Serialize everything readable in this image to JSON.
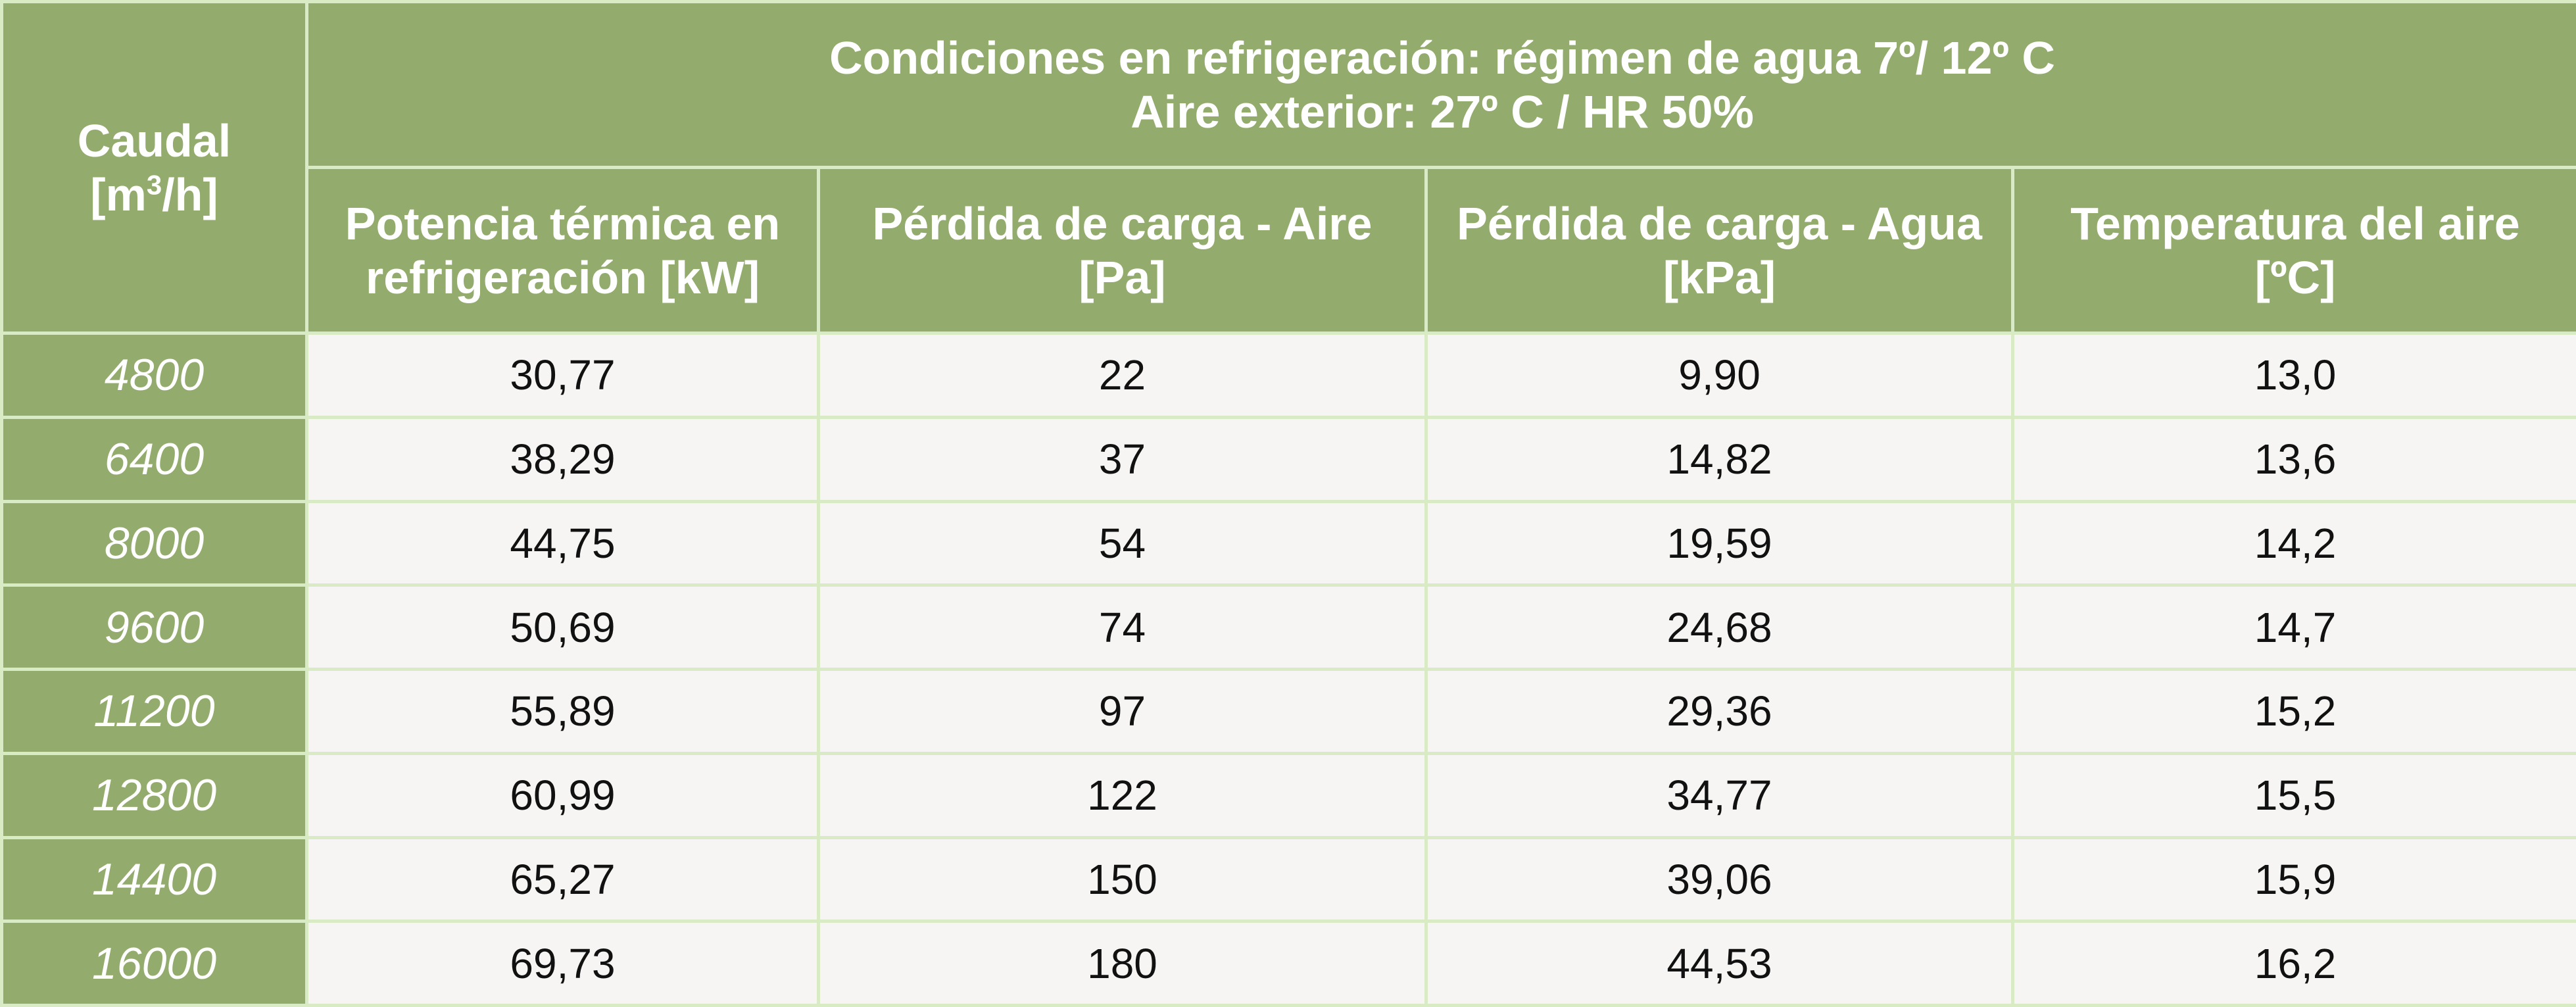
{
  "header": {
    "row_label_title": "Caudal",
    "row_label_unit_prefix": "[m",
    "row_label_unit_sup": "3",
    "row_label_unit_suffix": "/h]",
    "conditions_line1": "Condiciones en refrigeración: régimen de agua 7º/ 12º C",
    "conditions_line2": "Aire exterior: 27º C / HR 50%",
    "columns": [
      {
        "line1": "Potencia térmica en",
        "line2": "refrigeración  [kW]"
      },
      {
        "line1": "Pérdida de carga - Aire",
        "line2": "[Pa]"
      },
      {
        "line1": "Pérdida de carga - Agua",
        "line2": "[kPa]"
      },
      {
        "line1": "Temperatura del aire",
        "line2": "[ºC]"
      }
    ]
  },
  "rows": [
    {
      "caudal": "4800",
      "values": [
        "30,77",
        "22",
        "9,90",
        "13,0"
      ]
    },
    {
      "caudal": "6400",
      "values": [
        "38,29",
        "37",
        "14,82",
        "13,6"
      ]
    },
    {
      "caudal": "8000",
      "values": [
        "44,75",
        "54",
        "19,59",
        "14,2"
      ]
    },
    {
      "caudal": "9600",
      "values": [
        "50,69",
        "74",
        "24,68",
        "14,7"
      ]
    },
    {
      "caudal": "11200",
      "values": [
        "55,89",
        "97",
        "29,36",
        "15,2"
      ]
    },
    {
      "caudal": "12800",
      "values": [
        "60,99",
        "122",
        "34,77",
        "15,5"
      ]
    },
    {
      "caudal": "14400",
      "values": [
        "65,27",
        "150",
        "39,06",
        "15,9"
      ]
    },
    {
      "caudal": "16000",
      "values": [
        "69,73",
        "180",
        "44,53",
        "16,2"
      ]
    }
  ],
  "colors": {
    "header_bg": "#93ac6d",
    "cell_bg": "#f6f5f3",
    "border": "#d8ebc5"
  }
}
